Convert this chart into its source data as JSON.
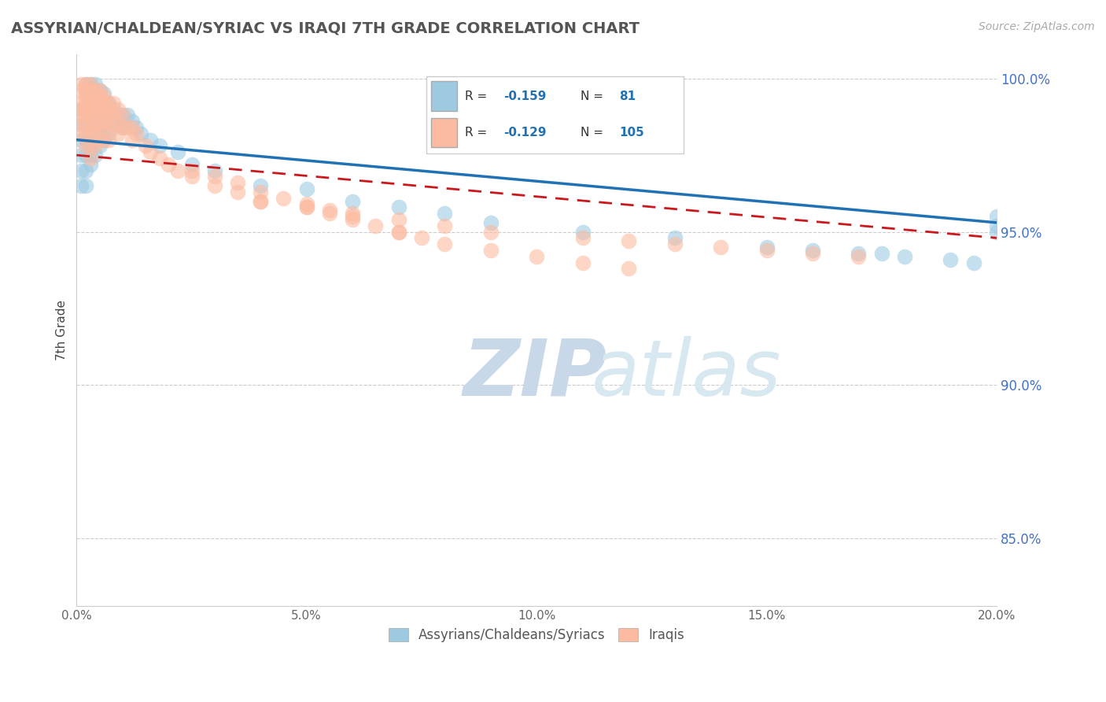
{
  "title": "ASSYRIAN/CHALDEAN/SYRIAC VS IRAQI 7TH GRADE CORRELATION CHART",
  "source_text": "Source: ZipAtlas.com",
  "ylabel_text": "7th Grade",
  "xmin": 0.0,
  "xmax": 0.2,
  "ymin": 0.828,
  "ymax": 1.008,
  "yticks": [
    0.85,
    0.9,
    0.95,
    1.0
  ],
  "ytick_labels": [
    "85.0%",
    "90.0%",
    "95.0%",
    "100.0%"
  ],
  "xticks": [
    0.0,
    0.05,
    0.1,
    0.15,
    0.2
  ],
  "xtick_labels": [
    "0.0%",
    "5.0%",
    "10.0%",
    "15.0%",
    "20.0%"
  ],
  "blue_color": "#9ecae1",
  "blue_line_color": "#2171b5",
  "pink_color": "#fcbba1",
  "pink_line_color": "#cb181d",
  "legend_label_blue": "Assyrians/Chaldeans/Syriacs",
  "legend_label_pink": "Iraqis",
  "watermark_zip": "ZIP",
  "watermark_atlas": "atlas",
  "blue_x": [
    0.001,
    0.001,
    0.001,
    0.001,
    0.001,
    0.001,
    0.002,
    0.002,
    0.002,
    0.002,
    0.002,
    0.002,
    0.002,
    0.002,
    0.003,
    0.003,
    0.003,
    0.003,
    0.003,
    0.003,
    0.003,
    0.003,
    0.003,
    0.003,
    0.004,
    0.004,
    0.004,
    0.004,
    0.004,
    0.004,
    0.004,
    0.004,
    0.005,
    0.005,
    0.005,
    0.005,
    0.005,
    0.005,
    0.005,
    0.006,
    0.006,
    0.006,
    0.006,
    0.006,
    0.007,
    0.007,
    0.007,
    0.007,
    0.008,
    0.008,
    0.009,
    0.009,
    0.01,
    0.01,
    0.011,
    0.012,
    0.013,
    0.014,
    0.016,
    0.018,
    0.022,
    0.025,
    0.03,
    0.04,
    0.05,
    0.06,
    0.07,
    0.08,
    0.09,
    0.11,
    0.13,
    0.15,
    0.16,
    0.17,
    0.175,
    0.18,
    0.19,
    0.195,
    0.2,
    0.2,
    0.2
  ],
  "blue_y": [
    0.99,
    0.985,
    0.98,
    0.975,
    0.97,
    0.965,
    0.998,
    0.996,
    0.99,
    0.985,
    0.98,
    0.975,
    0.97,
    0.965,
    0.998,
    0.996,
    0.994,
    0.99,
    0.988,
    0.985,
    0.98,
    0.978,
    0.975,
    0.972,
    0.998,
    0.995,
    0.992,
    0.99,
    0.988,
    0.985,
    0.98,
    0.975,
    0.996,
    0.993,
    0.99,
    0.988,
    0.985,
    0.982,
    0.978,
    0.995,
    0.99,
    0.988,
    0.985,
    0.98,
    0.992,
    0.99,
    0.988,
    0.982,
    0.99,
    0.986,
    0.988,
    0.985,
    0.988,
    0.984,
    0.988,
    0.986,
    0.984,
    0.982,
    0.98,
    0.978,
    0.976,
    0.972,
    0.97,
    0.965,
    0.964,
    0.96,
    0.958,
    0.956,
    0.953,
    0.95,
    0.948,
    0.945,
    0.944,
    0.943,
    0.943,
    0.942,
    0.941,
    0.94,
    0.955,
    0.952,
    0.95
  ],
  "pink_x": [
    0.001,
    0.001,
    0.001,
    0.001,
    0.001,
    0.001,
    0.001,
    0.002,
    0.002,
    0.002,
    0.002,
    0.002,
    0.002,
    0.002,
    0.002,
    0.002,
    0.003,
    0.003,
    0.003,
    0.003,
    0.003,
    0.003,
    0.003,
    0.003,
    0.003,
    0.003,
    0.004,
    0.004,
    0.004,
    0.004,
    0.004,
    0.004,
    0.004,
    0.004,
    0.005,
    0.005,
    0.005,
    0.005,
    0.005,
    0.005,
    0.006,
    0.006,
    0.006,
    0.006,
    0.006,
    0.006,
    0.007,
    0.007,
    0.007,
    0.007,
    0.007,
    0.008,
    0.008,
    0.008,
    0.009,
    0.009,
    0.009,
    0.01,
    0.01,
    0.011,
    0.012,
    0.012,
    0.013,
    0.015,
    0.016,
    0.018,
    0.02,
    0.022,
    0.025,
    0.03,
    0.035,
    0.04,
    0.05,
    0.06,
    0.07,
    0.08,
    0.09,
    0.11,
    0.12,
    0.13,
    0.14,
    0.15,
    0.16,
    0.17,
    0.04,
    0.05,
    0.055,
    0.06,
    0.065,
    0.07,
    0.075,
    0.08,
    0.09,
    0.1,
    0.11,
    0.12,
    0.025,
    0.03,
    0.035,
    0.04,
    0.045,
    0.05,
    0.055,
    0.06,
    0.07
  ],
  "pink_y": [
    0.998,
    0.996,
    0.992,
    0.99,
    0.988,
    0.985,
    0.982,
    0.998,
    0.996,
    0.994,
    0.992,
    0.99,
    0.988,
    0.985,
    0.982,
    0.978,
    0.998,
    0.996,
    0.994,
    0.992,
    0.99,
    0.988,
    0.985,
    0.982,
    0.978,
    0.974,
    0.996,
    0.994,
    0.992,
    0.99,
    0.988,
    0.985,
    0.982,
    0.978,
    0.996,
    0.994,
    0.992,
    0.99,
    0.985,
    0.98,
    0.994,
    0.992,
    0.99,
    0.988,
    0.984,
    0.98,
    0.992,
    0.99,
    0.988,
    0.985,
    0.98,
    0.992,
    0.988,
    0.984,
    0.99,
    0.986,
    0.982,
    0.988,
    0.984,
    0.984,
    0.984,
    0.98,
    0.982,
    0.978,
    0.976,
    0.974,
    0.972,
    0.97,
    0.968,
    0.965,
    0.963,
    0.96,
    0.958,
    0.956,
    0.954,
    0.952,
    0.95,
    0.948,
    0.947,
    0.946,
    0.945,
    0.944,
    0.943,
    0.942,
    0.96,
    0.958,
    0.956,
    0.954,
    0.952,
    0.95,
    0.948,
    0.946,
    0.944,
    0.942,
    0.94,
    0.938,
    0.97,
    0.968,
    0.966,
    0.963,
    0.961,
    0.959,
    0.957,
    0.955,
    0.95
  ]
}
